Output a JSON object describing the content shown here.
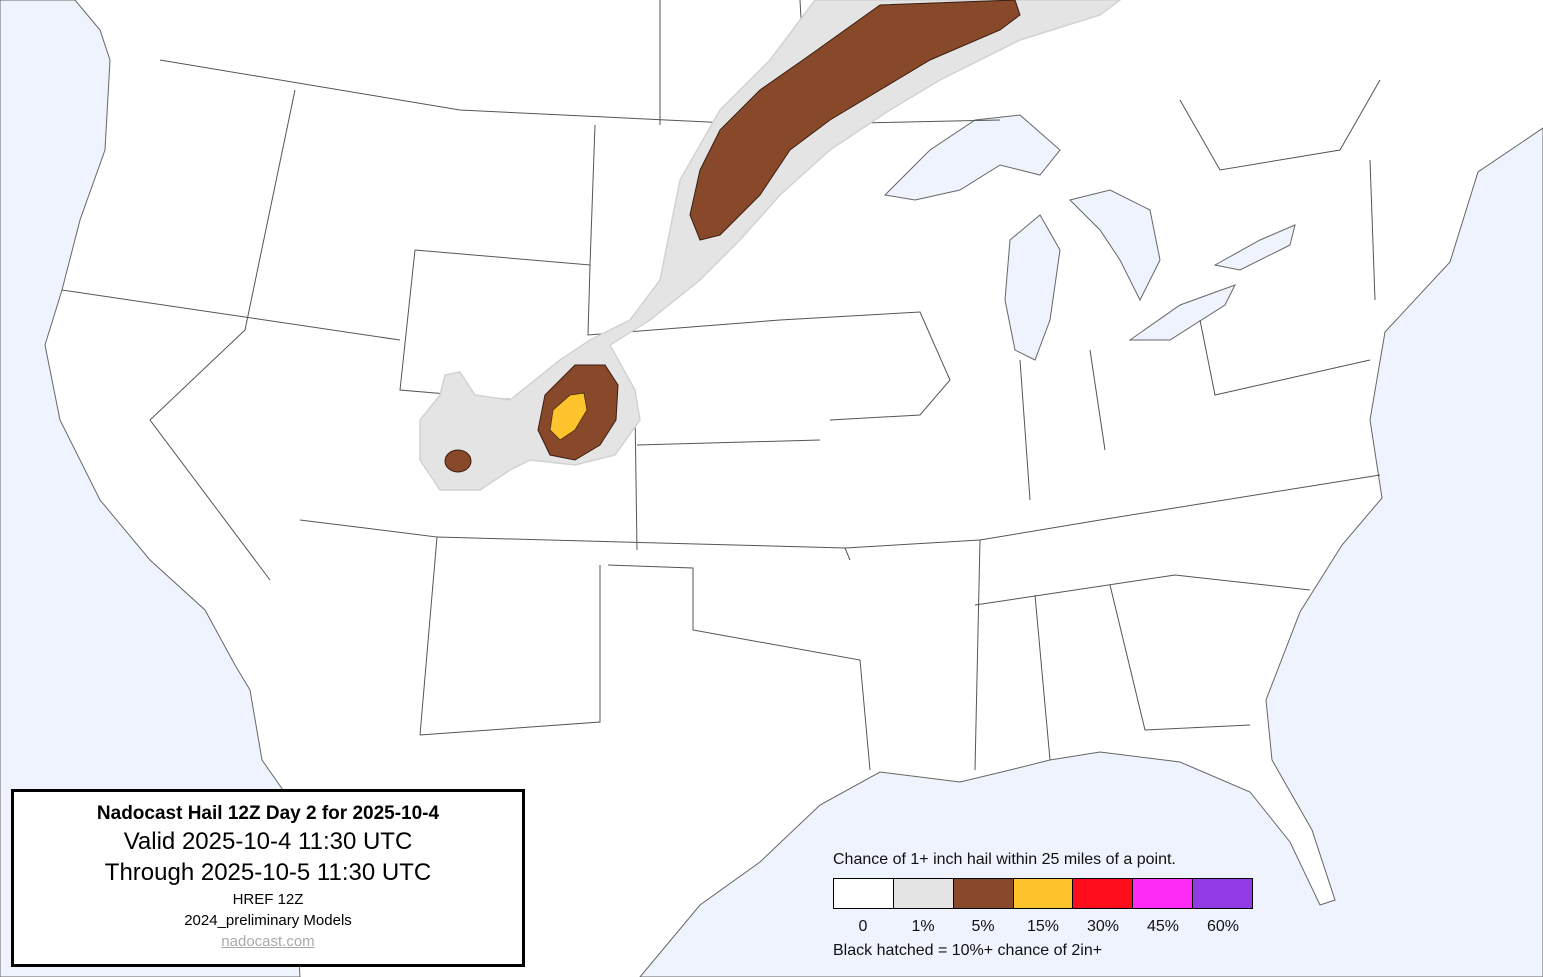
{
  "title_box": {
    "title": "Nadocast Hail 12Z Day 2 for 2025-10-4",
    "valid": "Valid 2025-10-4 11:30 UTC",
    "through": "Through 2025-10-5 11:30 UTC",
    "model": "HREF 12Z",
    "models_version": "2024_preliminary Models",
    "link": "nadocast.com"
  },
  "legend": {
    "title": "Chance of 1+ inch hail within 25 miles of a point.",
    "bins": [
      {
        "label": "0",
        "color": "#ffffff"
      },
      {
        "label": "1%",
        "color": "#e4e4e4"
      },
      {
        "label": "5%",
        "color": "#88482a"
      },
      {
        "label": "15%",
        "color": "#ffc42d"
      },
      {
        "label": "30%",
        "color": "#ff0d1d"
      },
      {
        "label": "45%",
        "color": "#ff2bf6"
      },
      {
        "label": "60%",
        "color": "#923ae6"
      }
    ],
    "note": "Black hatched = 10%+ chance of 2in+"
  },
  "map_colors": {
    "water": "#eef3fe",
    "land": "#ffffff",
    "borders": "#555555"
  }
}
